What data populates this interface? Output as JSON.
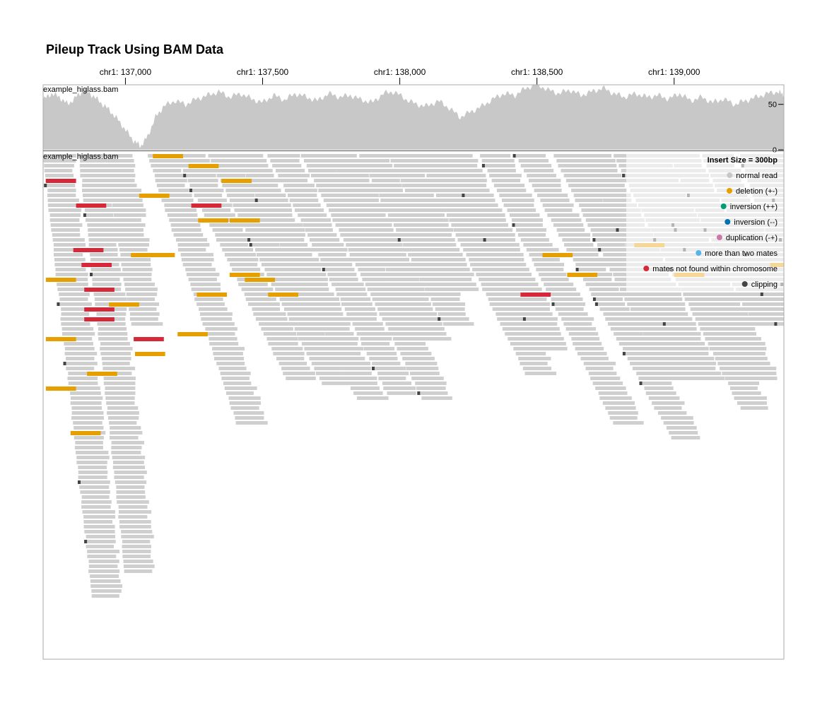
{
  "chart_data": {
    "type": "genome-pileup",
    "title": "Pileup Track Using BAM Data",
    "chromosome": "chr1",
    "xdomain": [
      136700,
      139400
    ],
    "xticks": [
      {
        "value": 137000,
        "label": "chr1: 137,000"
      },
      {
        "value": 137500,
        "label": "chr1: 137,500"
      },
      {
        "value": 138000,
        "label": "chr1: 138,000"
      },
      {
        "value": 138500,
        "label": "chr1: 138,500"
      },
      {
        "value": 139000,
        "label": "chr1: 139,000"
      }
    ],
    "coverage": {
      "label": "example_higlass.bam",
      "ydomain": [
        0,
        70
      ],
      "yticks": [
        {
          "value": 50,
          "label": "50"
        },
        {
          "value": 0,
          "label": "0"
        }
      ],
      "color": "#c8c8c8",
      "points": [
        [
          136700,
          55
        ],
        [
          136730,
          62
        ],
        [
          136760,
          58
        ],
        [
          136790,
          50
        ],
        [
          136820,
          58
        ],
        [
          136850,
          66
        ],
        [
          136880,
          60
        ],
        [
          136910,
          52
        ],
        [
          136940,
          44
        ],
        [
          136970,
          34
        ],
        [
          137000,
          22
        ],
        [
          137030,
          10
        ],
        [
          137055,
          4
        ],
        [
          137080,
          14
        ],
        [
          137110,
          36
        ],
        [
          137140,
          48
        ],
        [
          137180,
          54
        ],
        [
          137220,
          50
        ],
        [
          137260,
          56
        ],
        [
          137300,
          60
        ],
        [
          137340,
          64
        ],
        [
          137380,
          58
        ],
        [
          137420,
          62
        ],
        [
          137460,
          56
        ],
        [
          137500,
          52
        ],
        [
          137540,
          60
        ],
        [
          137580,
          55
        ],
        [
          137620,
          62
        ],
        [
          137660,
          58
        ],
        [
          137700,
          54
        ],
        [
          137740,
          62
        ],
        [
          137780,
          58
        ],
        [
          137820,
          60
        ],
        [
          137860,
          55
        ],
        [
          137900,
          52
        ],
        [
          137940,
          62
        ],
        [
          137980,
          64
        ],
        [
          138020,
          56
        ],
        [
          138060,
          50
        ],
        [
          138100,
          48
        ],
        [
          138140,
          54
        ],
        [
          138180,
          46
        ],
        [
          138220,
          36
        ],
        [
          138260,
          42
        ],
        [
          138300,
          48
        ],
        [
          138340,
          56
        ],
        [
          138380,
          62
        ],
        [
          138420,
          60
        ],
        [
          138460,
          68
        ],
        [
          138500,
          72
        ],
        [
          138540,
          66
        ],
        [
          138580,
          62
        ],
        [
          138620,
          66
        ],
        [
          138660,
          60
        ],
        [
          138700,
          64
        ],
        [
          138740,
          68
        ],
        [
          138780,
          62
        ],
        [
          138820,
          58
        ],
        [
          138860,
          62
        ],
        [
          138900,
          58
        ],
        [
          138940,
          60
        ],
        [
          138980,
          56
        ],
        [
          139020,
          62
        ],
        [
          139060,
          54
        ],
        [
          139100,
          58
        ],
        [
          139140,
          52
        ],
        [
          139180,
          56
        ],
        [
          139220,
          50
        ],
        [
          139260,
          54
        ],
        [
          139300,
          58
        ],
        [
          139340,
          62
        ],
        [
          139380,
          64
        ],
        [
          139400,
          60
        ]
      ]
    },
    "pileup": {
      "label": "example_higlass.bam",
      "insert_size_label": "Insert Size = 300bp",
      "colors": {
        "normal": "#cfcfcf",
        "deletion": "#e69f00",
        "mates_not_found": "#d62839",
        "clipping": "#444444"
      },
      "legend": [
        {
          "label": "normal read",
          "color": "#c8c8c8"
        },
        {
          "label": "deletion (+-)",
          "color": "#e69f00"
        },
        {
          "label": "inversion (++)",
          "color": "#009e73"
        },
        {
          "label": "inversion (--)",
          "color": "#0072b2"
        },
        {
          "label": "duplication (-+)",
          "color": "#cc79a7"
        },
        {
          "label": "more than two mates",
          "color": "#56b4e9"
        },
        {
          "label": "mates not found within chromosome",
          "color": "#d62839"
        },
        {
          "label": "clipping",
          "color": "#444444"
        }
      ],
      "columns": [
        {
          "start": 136700,
          "rows": 90,
          "step": 2
        },
        {
          "start": 136830,
          "rows": 85,
          "step": 2
        },
        {
          "start": 136920,
          "rows": 35,
          "step": 3
        },
        {
          "start": 137080,
          "rows": 55,
          "step": 6
        },
        {
          "start": 137180,
          "rows": 46,
          "step": 9
        },
        {
          "start": 137300,
          "rows": 47,
          "step": 9
        },
        {
          "start": 137400,
          "rows": 50,
          "step": 9
        },
        {
          "start": 137520,
          "rows": 49,
          "step": 9
        },
        {
          "start": 137640,
          "rows": 50,
          "step": 9
        },
        {
          "start": 137740,
          "rows": 38,
          "step": 9
        },
        {
          "start": 137850,
          "rows": 35,
          "step": 9
        },
        {
          "start": 137960,
          "rows": 28,
          "step": 8
        },
        {
          "start": 138060,
          "rows": 45,
          "step": 9
        },
        {
          "start": 138160,
          "rows": 40,
          "step": 9
        },
        {
          "start": 138290,
          "rows": 55,
          "step": 9
        },
        {
          "start": 138420,
          "rows": 58,
          "step": 10
        },
        {
          "start": 138560,
          "rows": 46,
          "step": 9
        },
        {
          "start": 138660,
          "rows": 46,
          "step": 9
        },
        {
          "start": 138780,
          "rows": 52,
          "step": 9
        },
        {
          "start": 138870,
          "rows": 46,
          "step": 9
        },
        {
          "start": 138980,
          "rows": 35,
          "step": 9
        },
        {
          "start": 139100,
          "rows": 35,
          "step": 8
        },
        {
          "start": 139240,
          "rows": 30,
          "step": 6
        },
        {
          "start": 139340,
          "rows": 48,
          "step": 3
        }
      ],
      "deletion_reads": [
        [
          137100,
          0
        ],
        [
          137230,
          2
        ],
        [
          137350,
          5
        ],
        [
          137050,
          8
        ],
        [
          137265,
          13
        ],
        [
          137380,
          13
        ],
        [
          137070,
          20
        ],
        [
          137020,
          20
        ],
        [
          137380,
          24
        ],
        [
          137435,
          25
        ],
        [
          137520,
          28
        ],
        [
          138520,
          20
        ],
        [
          138855,
          18
        ],
        [
          138610,
          24
        ],
        [
          139000,
          24
        ],
        [
          139350,
          22
        ],
        [
          137190,
          36
        ],
        [
          136940,
          30
        ],
        [
          137260,
          28
        ],
        [
          136710,
          25
        ],
        [
          137035,
          40
        ],
        [
          136860,
          44
        ],
        [
          136710,
          47
        ],
        [
          136800,
          56
        ],
        [
          136710,
          37
        ]
      ],
      "mates_not_found_reads": [
        [
          136710,
          5
        ],
        [
          136820,
          10
        ],
        [
          137240,
          10
        ],
        [
          136810,
          19
        ],
        [
          136840,
          22
        ],
        [
          136850,
          27
        ],
        [
          136850,
          31
        ],
        [
          136850,
          33
        ],
        [
          137030,
          37
        ],
        [
          138440,
          28
        ]
      ]
    }
  }
}
